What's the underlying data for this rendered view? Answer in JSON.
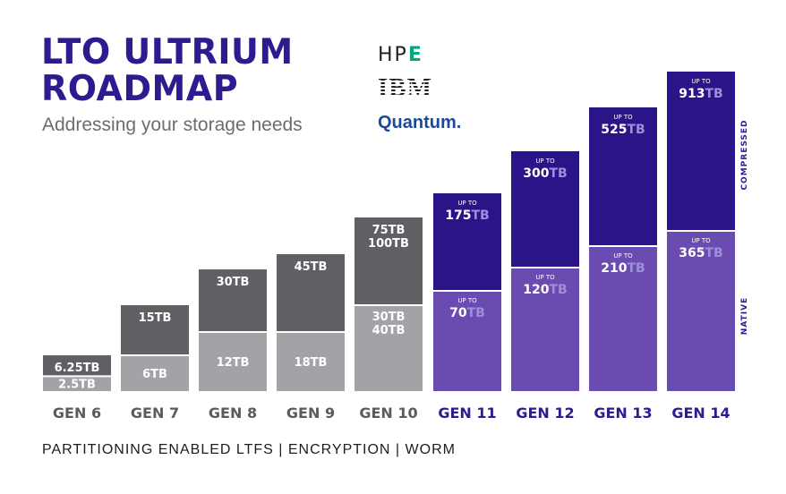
{
  "title_line1": "LTO ULTRIUM",
  "title_line2": "ROADMAP",
  "subtitle": "Addressing your storage needs",
  "vendors": {
    "hpe": "HP",
    "hpe_e": "E",
    "ibm": "IBM",
    "quantum": "Quantum."
  },
  "features": "PARTITIONING ENABLED LTFS | ENCRYPTION | WORM",
  "side_labels": {
    "compressed": "COMPRESSED",
    "native": "NATIVE"
  },
  "colors": {
    "dark_gray": "#5f6064",
    "light_gray": "#a2a3a6",
    "dark_purple": "#2b1487",
    "light_purple": "#6a4cb0",
    "purple_text": "#2f1a8f",
    "gray_text": "#5a5b5f",
    "tb_suffix": "#9e8fdb"
  },
  "chart_data": {
    "type": "bar",
    "title": "LTO Ultrium Roadmap",
    "unit": "TB",
    "upto_label": "UP TO",
    "categories": [
      "GEN 6",
      "GEN 7",
      "GEN 8",
      "GEN 9",
      "GEN 10",
      "GEN 11",
      "GEN 12",
      "GEN 13",
      "GEN 14"
    ],
    "series": [
      {
        "name": "Native",
        "values": [
          2.5,
          6,
          12,
          18,
          30,
          70,
          120,
          210,
          365
        ],
        "labels": [
          "2.5TB",
          "6TB",
          "12TB",
          "18TB",
          "30TB\n40TB",
          "70TB",
          "120TB",
          "210TB",
          "365TB"
        ]
      },
      {
        "name": "Compressed",
        "values": [
          6.25,
          15,
          30,
          45,
          75,
          175,
          300,
          525,
          913
        ],
        "labels": [
          "6.25TB",
          "15TB",
          "30TB",
          "45TB",
          "75TB\n100TB",
          "175TB",
          "300TB",
          "525TB",
          "913TB"
        ]
      }
    ],
    "future_generations": [
      "GEN 11",
      "GEN 12",
      "GEN 13",
      "GEN 14"
    ]
  }
}
